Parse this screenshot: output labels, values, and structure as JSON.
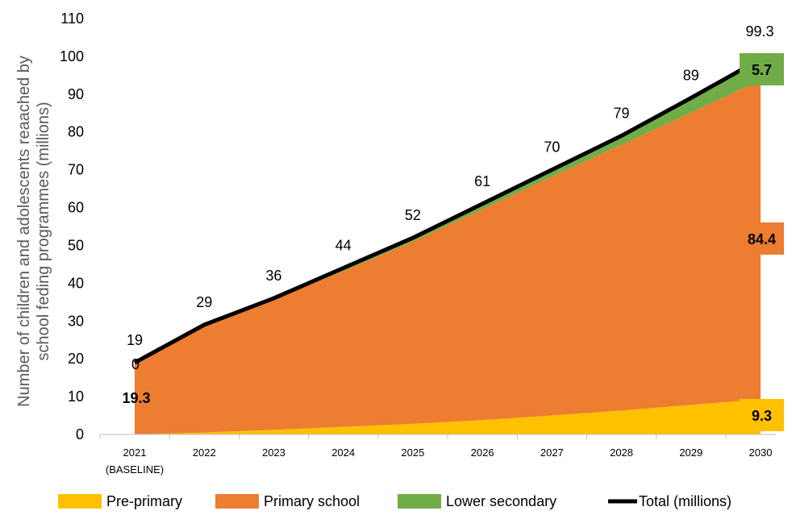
{
  "chart_data": {
    "type": "area",
    "ylabel_line1": "Number of children and adolescents reaached by",
    "ylabel_line2": "school feding programmes (millions)",
    "ylim": [
      0,
      110
    ],
    "yticks": [
      0,
      10,
      20,
      30,
      40,
      50,
      60,
      70,
      80,
      90,
      100,
      110
    ],
    "grid": false,
    "legend_position": "bottom",
    "categories": [
      "2021",
      "2022",
      "2023",
      "2024",
      "2025",
      "2026",
      "2027",
      "2028",
      "2029",
      "2030"
    ],
    "category_sublabels": [
      "(BASELINE)",
      "",
      "",
      "",
      "",
      "",
      "",
      "",
      "",
      ""
    ],
    "series": [
      {
        "name": "Pre-primary",
        "color": "#FFC000",
        "values": [
          0,
          0.5,
          1.2,
          2,
          2.8,
          3.8,
          5,
          6.3,
          7.8,
          9.3
        ]
      },
      {
        "name": "Primary school",
        "color": "#ED7D31",
        "values": [
          19.3,
          28.2,
          34.5,
          41.2,
          48.2,
          55.7,
          63.2,
          70.3,
          77.3,
          84.4
        ]
      },
      {
        "name": "Lower secondary",
        "color": "#70AD47",
        "values": [
          0,
          0.3,
          0.3,
          0.8,
          1.0,
          1.5,
          1.8,
          2.4,
          3.9,
          5.7
        ]
      }
    ],
    "total": {
      "name": "Total (millions)",
      "color": "#000000",
      "values": [
        19,
        29,
        36,
        44,
        52,
        61,
        70,
        79,
        89,
        99.3
      ],
      "labels": [
        "19",
        "29",
        "36",
        "44",
        "52",
        "61",
        "70",
        "79",
        "89",
        "99.3"
      ]
    },
    "annotations": {
      "start_zero": "0",
      "start_primary": "19.3",
      "end_preprimary": "9.3",
      "end_primary": "84.4",
      "end_secondary": "5.7"
    }
  }
}
